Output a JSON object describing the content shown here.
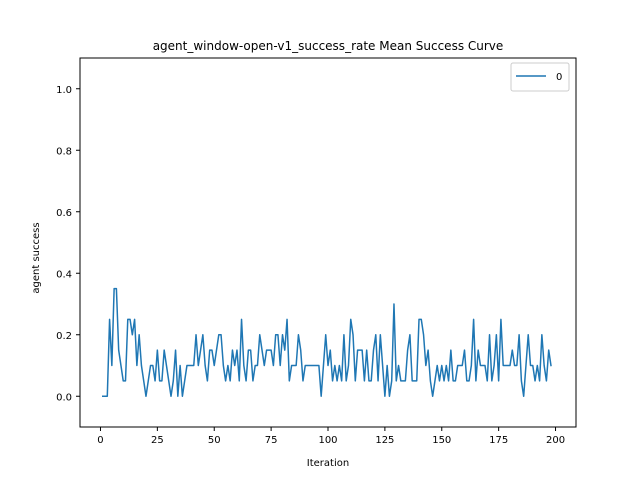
{
  "chart_data": {
    "type": "line",
    "title": "agent_window-open-v1_success_rate Mean Success Curve",
    "xlabel": "Iteration",
    "ylabel": "agent success",
    "xlim": [
      -9,
      209
    ],
    "ylim": [
      -0.1,
      1.1
    ],
    "xticks": [
      0,
      25,
      50,
      75,
      100,
      125,
      150,
      175,
      200
    ],
    "yticks": [
      0.0,
      0.2,
      0.4,
      0.6,
      0.8,
      1.0
    ],
    "xtick_labels": [
      "0",
      "25",
      "50",
      "75",
      "100",
      "125",
      "150",
      "175",
      "200"
    ],
    "ytick_labels": [
      "0.0",
      "0.2",
      "0.4",
      "0.6",
      "0.8",
      "1.0"
    ],
    "grid": false,
    "legend_position": "top-right",
    "series": [
      {
        "name": "0",
        "color": "#1f77b4",
        "x_start": 1,
        "values": [
          0,
          0,
          0,
          0.25,
          0.1,
          0.35,
          0.35,
          0.15,
          0.1,
          0.05,
          0.05,
          0.25,
          0.25,
          0.2,
          0.25,
          0.1,
          0.2,
          0.1,
          0.05,
          0,
          0.05,
          0.1,
          0.1,
          0.05,
          0.15,
          0.05,
          0.05,
          0.15,
          0.1,
          0.05,
          0,
          0.05,
          0.15,
          0,
          0.1,
          0,
          0.05,
          0.1,
          0.1,
          0.1,
          0.1,
          0.2,
          0.1,
          0.15,
          0.2,
          0.1,
          0.05,
          0.15,
          0.15,
          0.1,
          0.15,
          0.2,
          0.2,
          0.1,
          0.05,
          0.1,
          0.05,
          0.15,
          0.1,
          0.15,
          0.05,
          0.25,
          0.1,
          0.05,
          0.15,
          0.15,
          0.05,
          0.1,
          0.1,
          0.2,
          0.15,
          0.1,
          0.15,
          0.15,
          0.15,
          0.1,
          0.2,
          0.2,
          0.1,
          0.2,
          0.15,
          0.25,
          0.05,
          0.1,
          0.1,
          0.1,
          0.2,
          0.15,
          0.05,
          0.1,
          0.1,
          0.1,
          0.1,
          0.1,
          0.1,
          0.1,
          0,
          0.1,
          0.2,
          0.1,
          0.15,
          0.05,
          0.1,
          0.05,
          0.1,
          0.05,
          0.2,
          0.05,
          0.1,
          0.25,
          0.2,
          0.05,
          0.15,
          0.15,
          0.15,
          0.05,
          0.15,
          0.05,
          0.05,
          0.15,
          0.2,
          0.05,
          0.2,
          0.1,
          0,
          0.1,
          0,
          0.05,
          0.3,
          0.05,
          0.1,
          0.05,
          0.05,
          0.05,
          0.15,
          0.2,
          0.05,
          0.05,
          0.05,
          0.25,
          0.25,
          0.2,
          0.1,
          0.15,
          0.05,
          0,
          0.05,
          0.1,
          0.05,
          0.1,
          0.05,
          0.1,
          0.05,
          0.15,
          0.05,
          0.05,
          0.1,
          0.1,
          0.1,
          0.15,
          0.05,
          0.05,
          0.1,
          0.25,
          0.05,
          0.15,
          0.1,
          0.1,
          0.1,
          0.05,
          0.2,
          0.05,
          0.1,
          0.2,
          0.05,
          0.25,
          0.1,
          0.1,
          0.1,
          0.1,
          0.15,
          0.1,
          0.1,
          0.2,
          0.05,
          0,
          0.1,
          0.2,
          0.1,
          0.1,
          0.05,
          0.1,
          0.05,
          0.2,
          0.1,
          0.05,
          0.15,
          0.1
        ]
      }
    ]
  }
}
